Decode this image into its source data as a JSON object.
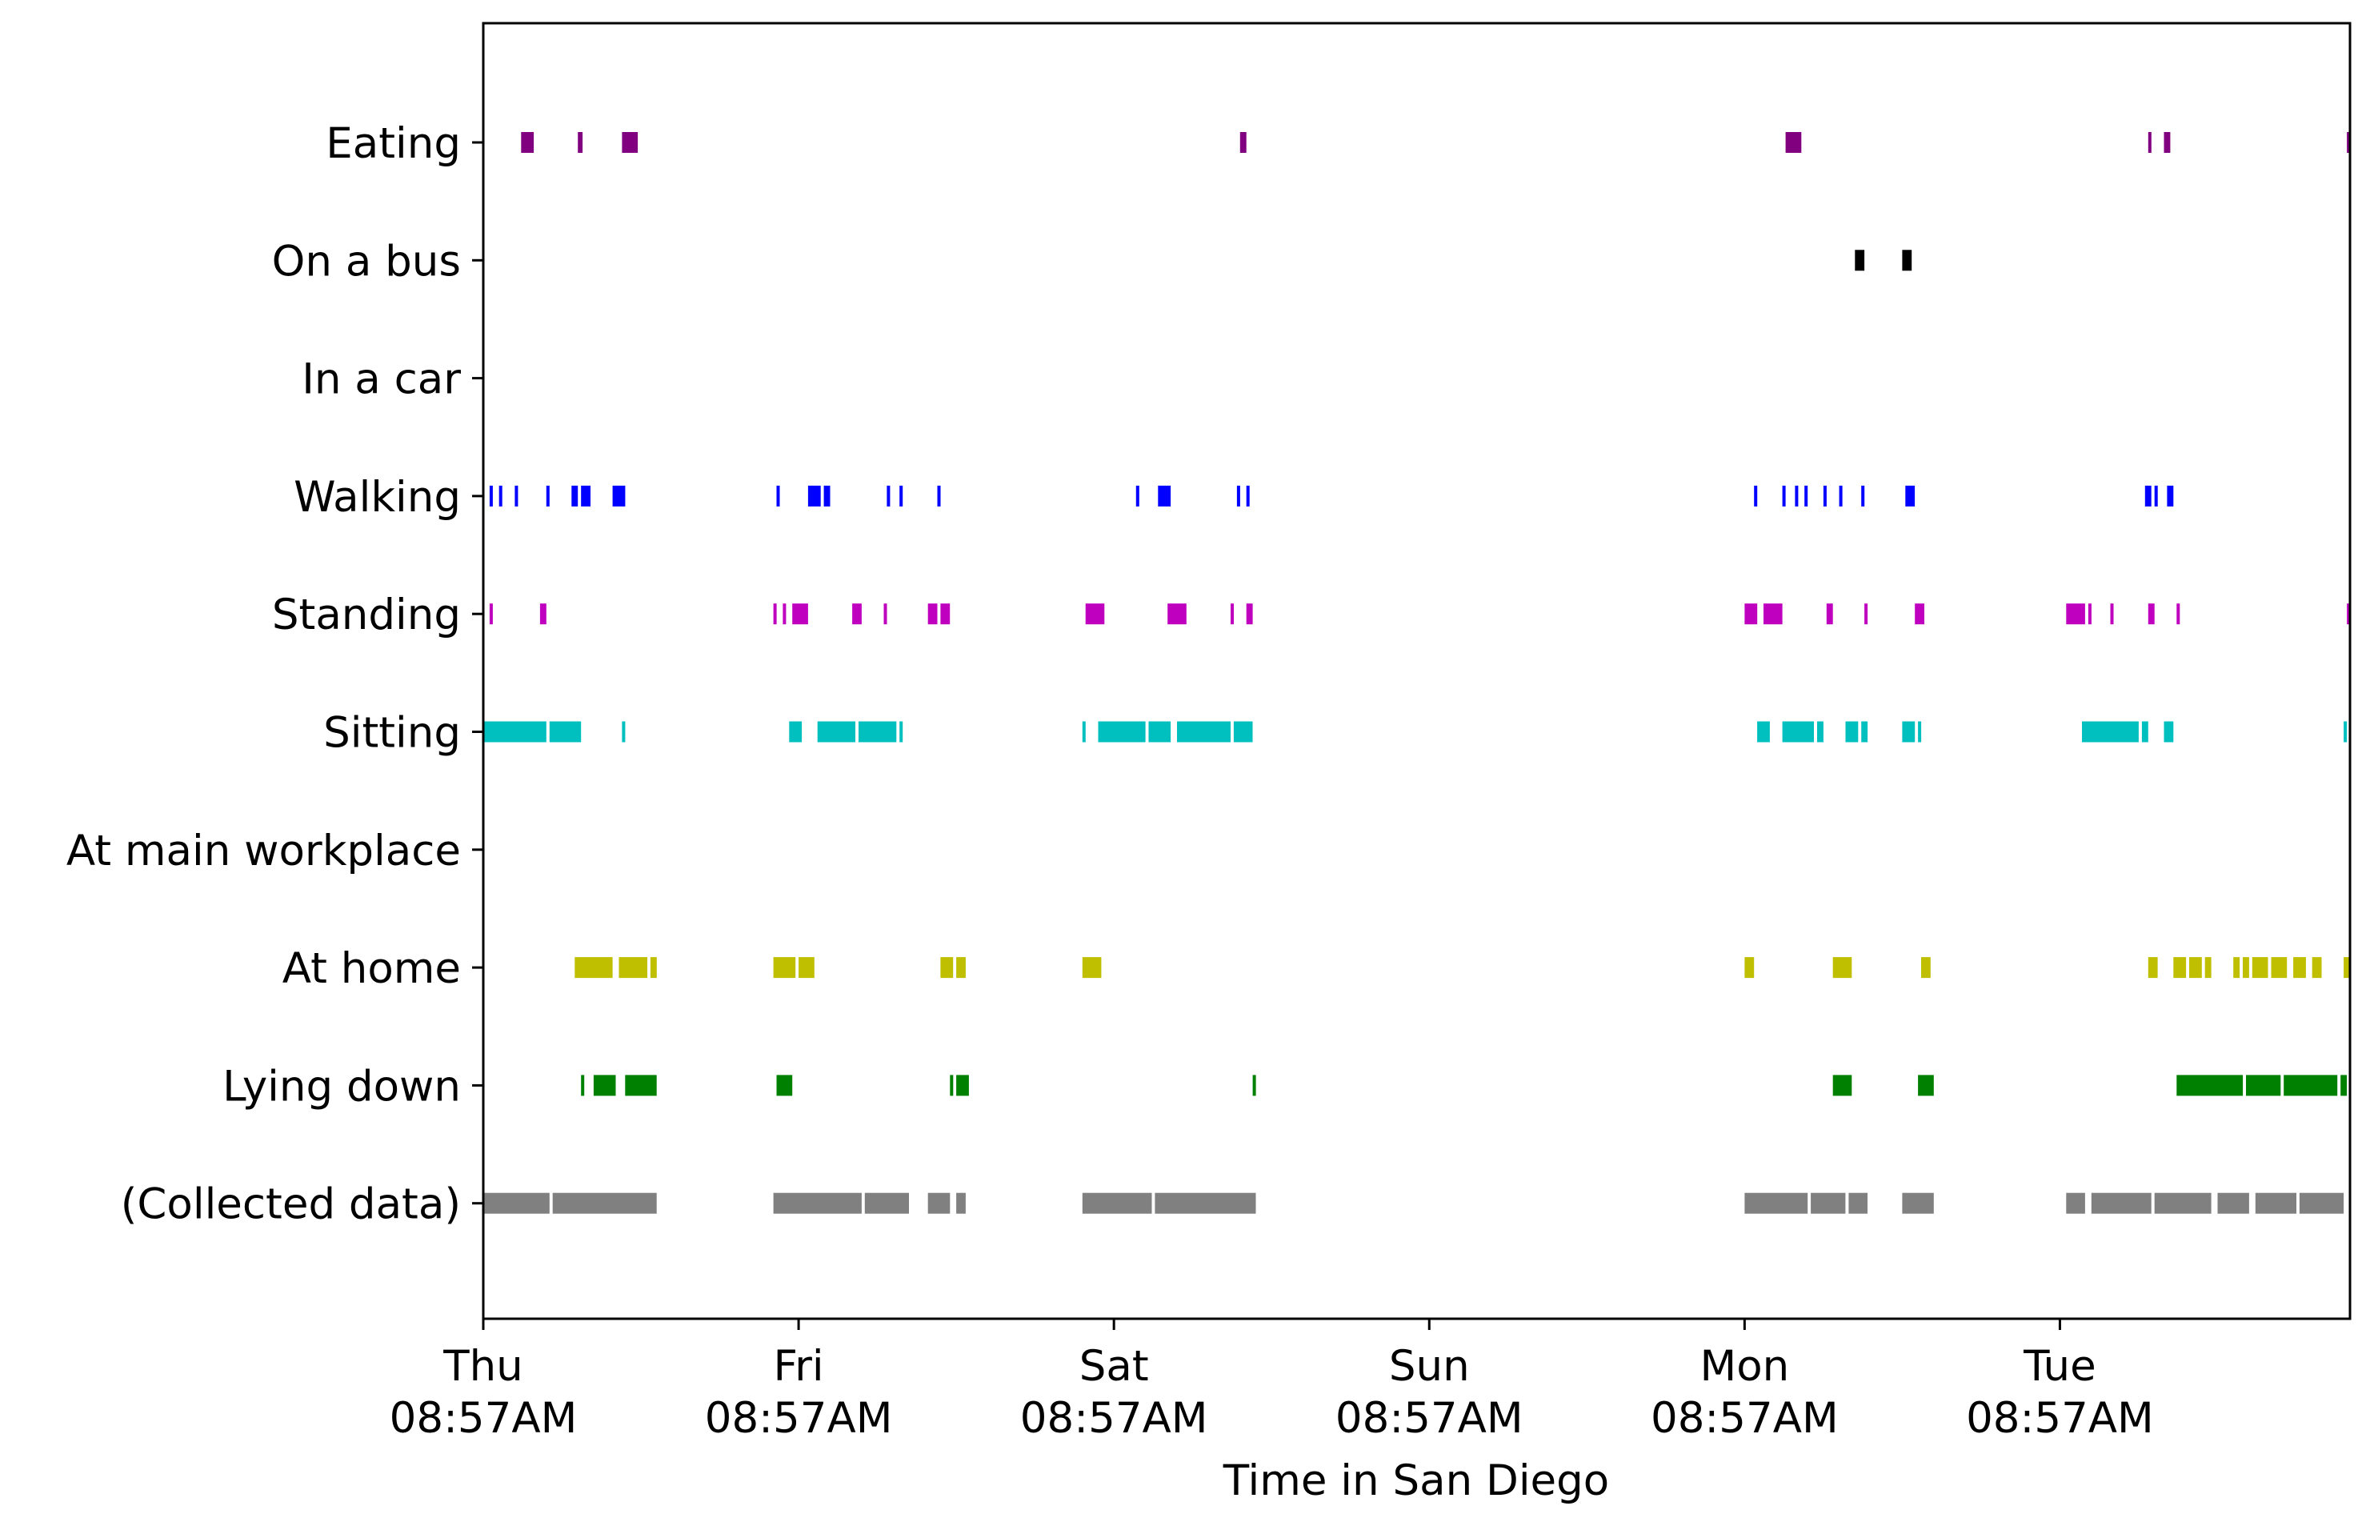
{
  "chart_data": {
    "type": "timeline",
    "title": "",
    "xlabel": "Time in San Diego",
    "ylabel": "",
    "x_unit": "days since Thu 08:57AM",
    "xlim": [
      0,
      5.92
    ],
    "xticks": [
      {
        "day": "Thu",
        "time": "08:57AM",
        "value": 0
      },
      {
        "day": "Fri",
        "time": "08:57AM",
        "value": 1
      },
      {
        "day": "Sat",
        "time": "08:57AM",
        "value": 2
      },
      {
        "day": "Sun",
        "time": "08:57AM",
        "value": 3
      },
      {
        "day": "Mon",
        "time": "08:57AM",
        "value": 4
      },
      {
        "day": "Tue",
        "time": "08:57AM",
        "value": 5
      }
    ],
    "series": [
      {
        "name": "Eating",
        "color": "#800080",
        "intervals": [
          [
            0.12,
            0.16
          ],
          [
            0.3,
            0.315
          ],
          [
            0.44,
            0.49
          ],
          [
            2.4,
            2.42
          ],
          [
            4.13,
            4.18
          ],
          [
            5.28,
            5.29
          ],
          [
            5.33,
            5.35
          ],
          [
            5.91,
            5.92
          ]
        ]
      },
      {
        "name": "On a bus",
        "color": "#000000",
        "intervals": [
          [
            4.35,
            4.38
          ],
          [
            4.5,
            4.53
          ]
        ]
      },
      {
        "name": "In a car",
        "color": "#000000",
        "intervals": []
      },
      {
        "name": "Walking",
        "color": "#0000ff",
        "intervals": [
          [
            0.02,
            0.03
          ],
          [
            0.05,
            0.06
          ],
          [
            0.1,
            0.11
          ],
          [
            0.2,
            0.21
          ],
          [
            0.28,
            0.3
          ],
          [
            0.31,
            0.34
          ],
          [
            0.41,
            0.45
          ],
          [
            0.93,
            0.94
          ],
          [
            1.03,
            1.07
          ],
          [
            1.08,
            1.1
          ],
          [
            1.28,
            1.29
          ],
          [
            1.32,
            1.33
          ],
          [
            1.44,
            1.45
          ],
          [
            2.07,
            2.08
          ],
          [
            2.14,
            2.18
          ],
          [
            2.39,
            2.4
          ],
          [
            2.42,
            2.43
          ],
          [
            4.03,
            4.04
          ],
          [
            4.12,
            4.13
          ],
          [
            4.16,
            4.17
          ],
          [
            4.19,
            4.2
          ],
          [
            4.25,
            4.26
          ],
          [
            4.3,
            4.31
          ],
          [
            4.37,
            4.38
          ],
          [
            4.51,
            4.54
          ],
          [
            5.27,
            5.29
          ],
          [
            5.3,
            5.31
          ],
          [
            5.34,
            5.36
          ]
        ]
      },
      {
        "name": "Standing",
        "color": "#bf00bf",
        "intervals": [
          [
            0.02,
            0.03
          ],
          [
            0.18,
            0.2
          ],
          [
            0.92,
            0.93
          ],
          [
            0.95,
            0.96
          ],
          [
            0.98,
            1.03
          ],
          [
            1.17,
            1.2
          ],
          [
            1.27,
            1.28
          ],
          [
            1.41,
            1.44
          ],
          [
            1.45,
            1.48
          ],
          [
            1.91,
            1.97
          ],
          [
            2.17,
            2.23
          ],
          [
            2.37,
            2.38
          ],
          [
            2.42,
            2.44
          ],
          [
            4.0,
            4.04
          ],
          [
            4.06,
            4.12
          ],
          [
            4.26,
            4.28
          ],
          [
            4.38,
            4.39
          ],
          [
            4.54,
            4.57
          ],
          [
            5.02,
            5.08
          ],
          [
            5.09,
            5.1
          ],
          [
            5.16,
            5.17
          ],
          [
            5.28,
            5.3
          ],
          [
            5.37,
            5.38
          ],
          [
            5.91,
            5.92
          ]
        ]
      },
      {
        "name": "Sitting",
        "color": "#00bfbf",
        "intervals": [
          [
            0.0,
            0.2
          ],
          [
            0.21,
            0.31
          ],
          [
            0.44,
            0.45
          ],
          [
            0.97,
            1.01
          ],
          [
            1.06,
            1.18
          ],
          [
            1.19,
            1.31
          ],
          [
            1.32,
            1.33
          ],
          [
            1.9,
            1.91
          ],
          [
            1.95,
            2.1
          ],
          [
            2.11,
            2.18
          ],
          [
            2.2,
            2.37
          ],
          [
            2.38,
            2.44
          ],
          [
            4.04,
            4.08
          ],
          [
            4.12,
            4.22
          ],
          [
            4.23,
            4.25
          ],
          [
            4.32,
            4.36
          ],
          [
            4.37,
            4.39
          ],
          [
            4.5,
            4.54
          ],
          [
            4.55,
            4.56
          ],
          [
            5.07,
            5.25
          ],
          [
            5.26,
            5.28
          ],
          [
            5.33,
            5.36
          ],
          [
            5.9,
            5.91
          ]
        ]
      },
      {
        "name": "At main workplace",
        "color": "#bfbf00",
        "intervals": []
      },
      {
        "name": "At home",
        "color": "#bfbf00",
        "intervals": [
          [
            0.29,
            0.41
          ],
          [
            0.43,
            0.52
          ],
          [
            0.53,
            0.55
          ],
          [
            0.92,
            0.99
          ],
          [
            1.0,
            1.05
          ],
          [
            1.45,
            1.49
          ],
          [
            1.5,
            1.53
          ],
          [
            1.9,
            1.96
          ],
          [
            4.0,
            4.03
          ],
          [
            4.28,
            4.34
          ],
          [
            4.56,
            4.59
          ],
          [
            5.28,
            5.31
          ],
          [
            5.36,
            5.4
          ],
          [
            5.41,
            5.45
          ],
          [
            5.46,
            5.48
          ],
          [
            5.55,
            5.57
          ],
          [
            5.58,
            5.6
          ],
          [
            5.61,
            5.66
          ],
          [
            5.67,
            5.72
          ],
          [
            5.74,
            5.78
          ],
          [
            5.8,
            5.83
          ],
          [
            5.9,
            5.92
          ]
        ]
      },
      {
        "name": "Lying down",
        "color": "#008000",
        "intervals": [
          [
            0.31,
            0.32
          ],
          [
            0.35,
            0.42
          ],
          [
            0.45,
            0.55
          ],
          [
            0.93,
            0.98
          ],
          [
            1.48,
            1.49
          ],
          [
            1.5,
            1.54
          ],
          [
            2.44,
            2.45
          ],
          [
            4.28,
            4.34
          ],
          [
            4.55,
            4.6
          ],
          [
            5.37,
            5.58
          ],
          [
            5.59,
            5.7
          ],
          [
            5.71,
            5.88
          ],
          [
            5.89,
            5.91
          ]
        ]
      },
      {
        "name": "(Collected data)",
        "color": "#808080",
        "intervals": [
          [
            0.0,
            0.21
          ],
          [
            0.22,
            0.55
          ],
          [
            0.92,
            1.2
          ],
          [
            1.21,
            1.35
          ],
          [
            1.41,
            1.48
          ],
          [
            1.5,
            1.53
          ],
          [
            1.9,
            2.12
          ],
          [
            2.13,
            2.45
          ],
          [
            4.0,
            4.2
          ],
          [
            4.21,
            4.32
          ],
          [
            4.33,
            4.39
          ],
          [
            4.5,
            4.6
          ],
          [
            5.02,
            5.08
          ],
          [
            5.1,
            5.29
          ],
          [
            5.3,
            5.48
          ],
          [
            5.5,
            5.6
          ],
          [
            5.62,
            5.75
          ],
          [
            5.76,
            5.9
          ]
        ]
      }
    ]
  }
}
